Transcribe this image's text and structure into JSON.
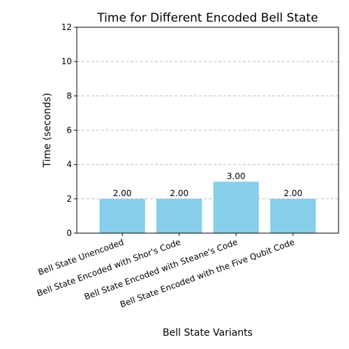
{
  "chart_data": {
    "type": "bar",
    "title": "Time for Different Encoded Bell State",
    "xlabel": "Bell State Variants",
    "ylabel": "Time (seconds)",
    "categories": [
      "Bell State Unencoded",
      "Bell State Encoded with Shor's Code",
      "Bell State Encoded with Steane's Code",
      "Bell State Encoded with the Five Qubit Code"
    ],
    "values": [
      2.0,
      2.0,
      3.0,
      2.0
    ],
    "data_labels": [
      "2.00",
      "2.00",
      "3.00",
      "2.00"
    ],
    "ylim": [
      0,
      12
    ],
    "yticks": [
      0,
      2,
      4,
      6,
      8,
      10,
      12
    ],
    "ytick_labels": [
      "0",
      "2",
      "4",
      "6",
      "8",
      "10",
      "12"
    ],
    "grid": true,
    "bar_color": "#87CEEB"
  }
}
